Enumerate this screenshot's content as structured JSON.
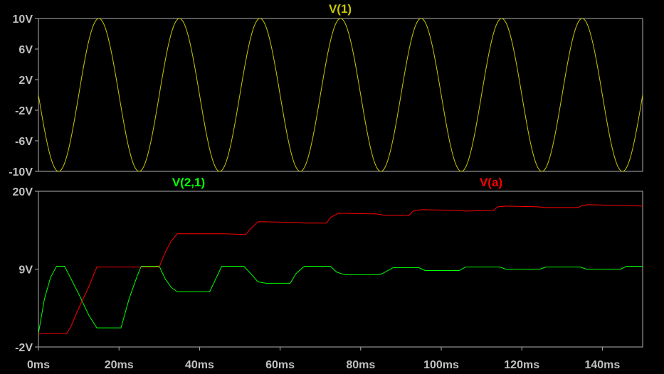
{
  "colors": {
    "background": "#000000",
    "frame": "#b0b0b0",
    "tick_text": "#c0c0c0",
    "v1": "#c8c800",
    "v21": "#00ff00",
    "va": "#ff0000"
  },
  "chart_data": [
    {
      "type": "line",
      "title": "V(1)",
      "xlabel": "",
      "ylabel": "",
      "xlim": [
        0,
        150
      ],
      "ylim": [
        -10,
        10
      ],
      "grid": false,
      "x_tick_labels": [],
      "y_ticks": [
        10,
        6,
        2,
        -2,
        -6,
        -10
      ],
      "y_tick_labels": [
        "10V",
        "6V",
        "2V",
        "-2V",
        "-6V",
        "-10V"
      ],
      "series": [
        {
          "name": "V(1)",
          "color": "#c8c800",
          "function": "-10*sin(2*pi*50*t)",
          "x": [
            0,
            2.5,
            5,
            7.5,
            10,
            12.5,
            15,
            17.5,
            20,
            22.5,
            25,
            27.5,
            30,
            32.5,
            35,
            37.5,
            40,
            42.5,
            45,
            47.5,
            50,
            52.5,
            55,
            57.5,
            60,
            62.5,
            65,
            67.5,
            70,
            72.5,
            75,
            77.5,
            80,
            82.5,
            85,
            87.5,
            90,
            92.5,
            95,
            97.5,
            100,
            102.5,
            105,
            107.5,
            110,
            112.5,
            115,
            117.5,
            120,
            122.5,
            125,
            127.5,
            130,
            132.5,
            135,
            137.5,
            140,
            142.5,
            145,
            147.5,
            150
          ],
          "values": [
            0,
            -7.07,
            -10,
            -7.07,
            0,
            7.07,
            10,
            7.07,
            0,
            -7.07,
            -10,
            -7.07,
            0,
            7.07,
            10,
            7.07,
            0,
            -7.07,
            -10,
            -7.07,
            0,
            7.07,
            10,
            7.07,
            0,
            -7.07,
            -10,
            -7.07,
            0,
            7.07,
            10,
            7.07,
            0,
            -7.07,
            -10,
            -7.07,
            0,
            7.07,
            10,
            7.07,
            0,
            -7.07,
            -10,
            -7.07,
            0,
            7.07,
            10,
            7.07,
            0,
            -7.07,
            -10,
            -7.07,
            0,
            7.07,
            10,
            7.07,
            0,
            -7.07,
            -10,
            -7.07,
            0
          ]
        }
      ]
    },
    {
      "type": "line",
      "title": "",
      "xlabel": "",
      "ylabel": "",
      "xlim": [
        0,
        150
      ],
      "ylim": [
        -2,
        20
      ],
      "grid": false,
      "x_ticks": [
        0,
        20,
        40,
        60,
        80,
        100,
        120,
        140
      ],
      "x_tick_labels": [
        "0ms",
        "20ms",
        "40ms",
        "60ms",
        "80ms",
        "100ms",
        "120ms",
        "140ms"
      ],
      "y_ticks": [
        20,
        9,
        -2
      ],
      "y_tick_labels": [
        "20V",
        "9V",
        "-2V"
      ],
      "series": [
        {
          "name": "V(2,1)",
          "color": "#00ff00",
          "x": [
            0,
            1.5,
            3,
            4.5,
            6.5,
            10,
            12.5,
            14.5,
            20.5,
            22.5,
            24.5,
            25.5,
            30,
            31.5,
            33,
            34.5,
            42.5,
            44,
            45.5,
            51,
            52.5,
            54.5,
            56.5,
            62.5,
            64,
            66,
            72.5,
            74,
            76,
            84.5,
            85.5,
            88,
            91.5,
            94.5,
            96,
            99,
            104.5,
            106,
            108,
            114.5,
            116,
            118,
            124.5,
            126,
            128,
            134.5,
            136,
            138,
            144.5,
            146,
            148,
            150
          ],
          "values": [
            -0.1,
            4.8,
            7.8,
            9.4,
            9.4,
            5.5,
            2.5,
            0.7,
            0.7,
            4.8,
            8.0,
            9.4,
            9.4,
            7.6,
            6.4,
            5.8,
            5.8,
            7.6,
            9.4,
            9.4,
            8.5,
            7.2,
            7.0,
            7.0,
            8.4,
            9.4,
            9.4,
            8.6,
            8.2,
            8.2,
            8.4,
            9.2,
            9.2,
            9.2,
            8.8,
            8.8,
            8.8,
            9.3,
            9.3,
            9.3,
            9.0,
            9.0,
            9.0,
            9.3,
            9.3,
            9.3,
            9.0,
            9.0,
            9.0,
            9.4,
            9.4,
            9.4
          ]
        },
        {
          "name": "V(a)",
          "color": "#ff0000",
          "x": [
            0,
            7,
            8,
            10,
            12.5,
            14.5,
            25,
            30,
            31.5,
            33,
            34.5,
            41.5,
            44,
            46,
            51.5,
            52.5,
            54.5,
            64,
            66,
            71.5,
            72.5,
            74.5,
            84,
            86,
            92,
            93,
            95,
            104,
            106,
            113,
            114,
            116,
            124,
            126,
            134,
            135,
            136.5,
            144,
            146,
            150
          ],
          "values": [
            -0.1,
            -0.1,
            0.8,
            3.5,
            6.5,
            9.3,
            9.3,
            9.3,
            11.4,
            13.0,
            14.0,
            14.0,
            14.0,
            14.0,
            13.9,
            14.6,
            15.7,
            15.6,
            15.5,
            15.5,
            16.3,
            16.9,
            16.8,
            16.6,
            16.6,
            17.2,
            17.4,
            17.3,
            17.2,
            17.3,
            17.8,
            17.9,
            17.8,
            17.7,
            17.7,
            18.0,
            18.1,
            18.0,
            18.0,
            17.9
          ]
        }
      ]
    }
  ]
}
